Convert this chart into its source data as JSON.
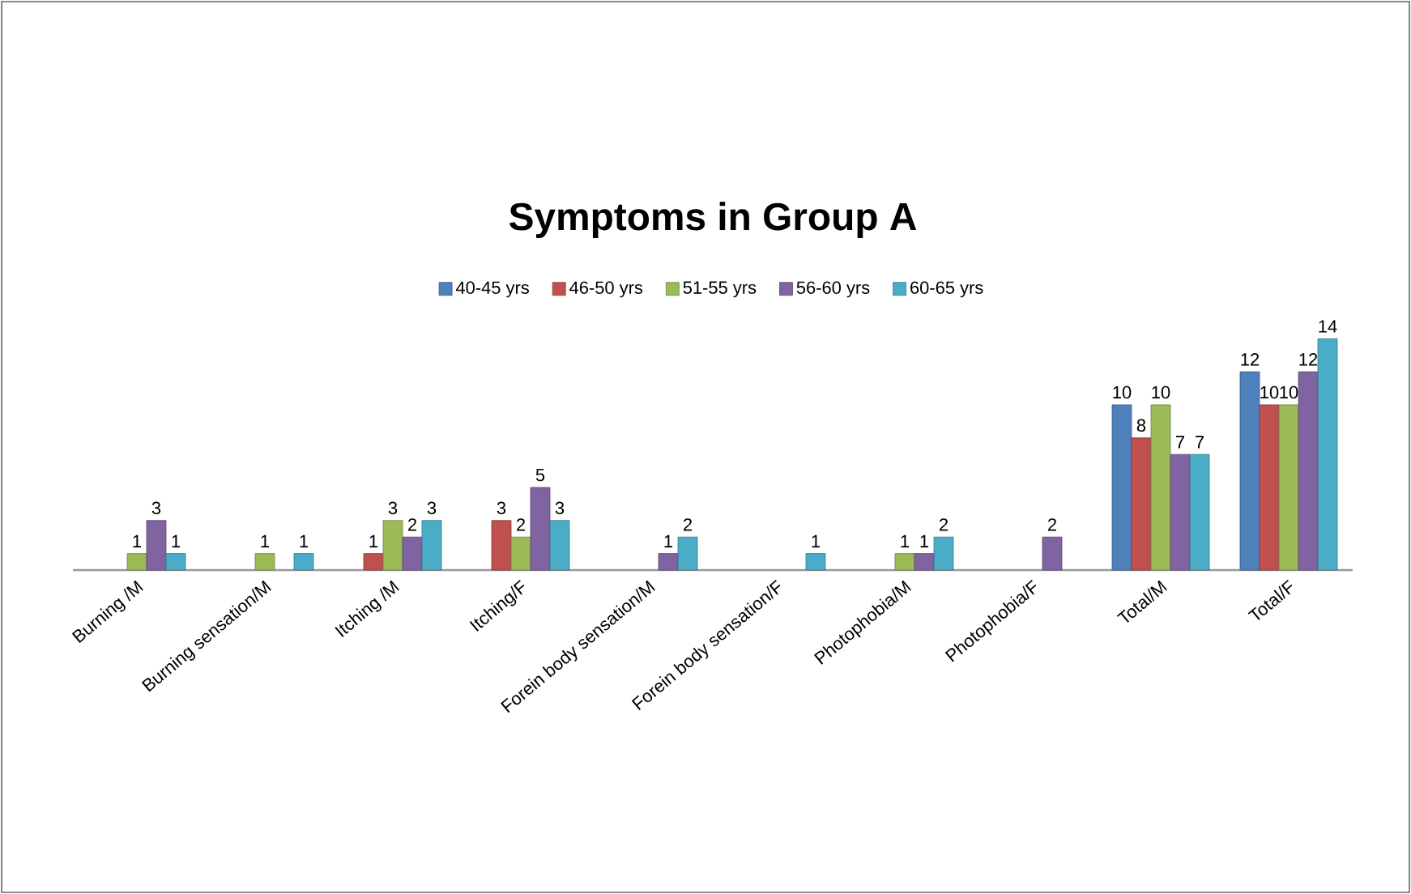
{
  "chart_data": {
    "type": "bar",
    "title": "Symptoms in Group A",
    "categories": [
      "Burning /M",
      "Burning sensation/M",
      "Itching /M",
      "Itching/F",
      "Forein body sensation/M",
      "Forein body sensation/F",
      "Photophobia/M",
      "Photophobia/F",
      "Total/M",
      "Total/F"
    ],
    "series": [
      {
        "name": "40-45 yrs",
        "color": "#4f81bd",
        "values": [
          null,
          null,
          null,
          null,
          null,
          null,
          null,
          null,
          10,
          12
        ]
      },
      {
        "name": "46-50 yrs",
        "color": "#c0504d",
        "values": [
          null,
          null,
          1,
          3,
          null,
          null,
          null,
          null,
          8,
          10
        ]
      },
      {
        "name": "51-55 yrs",
        "color": "#9bbb59",
        "values": [
          1,
          1,
          3,
          2,
          null,
          null,
          1,
          null,
          10,
          10
        ]
      },
      {
        "name": "56-60 yrs",
        "color": "#8064a2",
        "values": [
          3,
          null,
          2,
          5,
          1,
          null,
          1,
          2,
          7,
          12
        ]
      },
      {
        "name": "60-65 yrs",
        "color": "#4bacc6",
        "values": [
          1,
          1,
          3,
          3,
          2,
          1,
          2,
          null,
          7,
          14
        ]
      }
    ],
    "data_labels": true,
    "legend": "top"
  }
}
